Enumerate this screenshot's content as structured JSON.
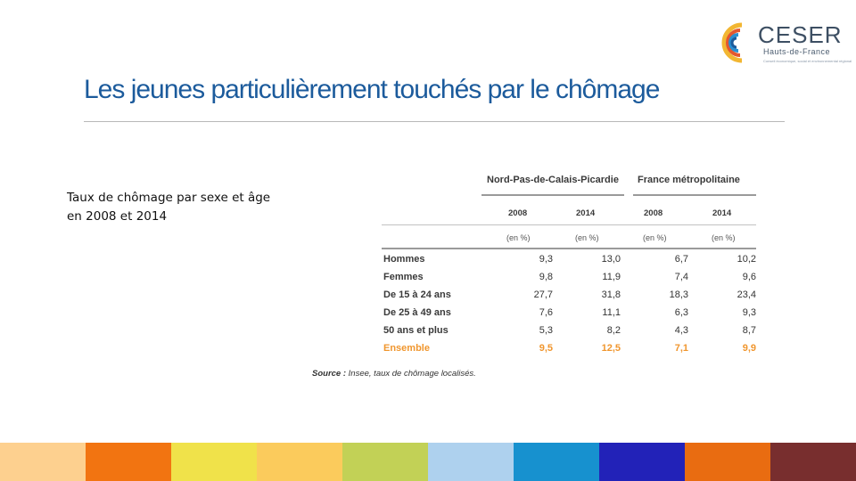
{
  "logo": {
    "name": "CESER",
    "subtitle": "Hauts-de-France",
    "tagline": "Conseil économique, social et environnemental régional",
    "colors": [
      "#f2b632",
      "#e4572e",
      "#2a8fd1",
      "#1c5b9c"
    ]
  },
  "title": "Les jeunes particulièrement touchés par le chômage",
  "caption": {
    "line1": "Taux de chômage par sexe et âge",
    "line2": "en 2008 et 2014"
  },
  "table": {
    "groups": [
      "Nord-Pas-de-Calais-Picardie",
      "France métropolitaine"
    ],
    "years": [
      "2008",
      "2014",
      "2008",
      "2014"
    ],
    "units": [
      "(en %)",
      "(en %)",
      "(en %)",
      "(en %)"
    ],
    "rows": [
      {
        "label": "Hommes",
        "values": [
          "9,3",
          "13,0",
          "6,7",
          "10,2"
        ]
      },
      {
        "label": "Femmes",
        "values": [
          "9,8",
          "11,9",
          "7,4",
          "9,6"
        ]
      },
      {
        "label": "De 15 à 24 ans",
        "values": [
          "27,7",
          "31,8",
          "18,3",
          "23,4"
        ]
      },
      {
        "label": "De 25 à 49 ans",
        "values": [
          "7,6",
          "11,1",
          "6,3",
          "9,3"
        ]
      },
      {
        "label": "50 ans et plus",
        "values": [
          "5,3",
          "8,2",
          "4,3",
          "8,7"
        ]
      },
      {
        "label": "Ensemble",
        "values": [
          "9,5",
          "12,5",
          "7,1",
          "9,9"
        ]
      }
    ],
    "total_color": "#f0962e"
  },
  "source": {
    "label": "Source :",
    "text": "Insee, taux de chômage localisés."
  },
  "bottom_bar": {
    "colors": [
      "#fdd08f",
      "#f27411",
      "#f0e24a",
      "#fbcb5c",
      "#c2d156",
      "#aed1ee",
      "#1791cf",
      "#2222b8",
      "#e96c11",
      "#782e2e"
    ]
  }
}
